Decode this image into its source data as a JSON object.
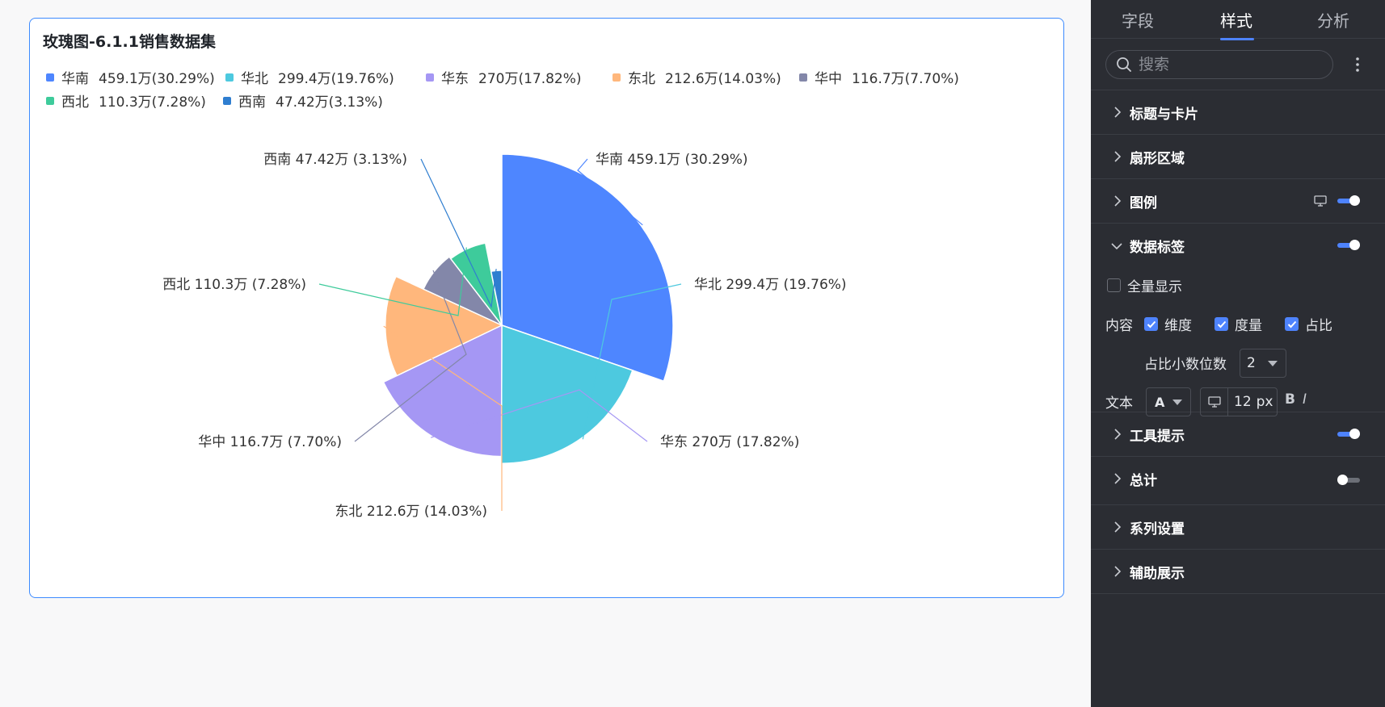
{
  "chart_title": "玫瑰图-6.1.1销售数据集",
  "colors": {
    "accent": "#4e83fd",
    "card_border": "#3d8bff",
    "panel_bg": "#2b2d33"
  },
  "legend": [
    {
      "name": "华南",
      "value": "459.1万(30.29%)",
      "color": "#4e86ff"
    },
    {
      "name": "华北",
      "value": "299.4万(19.76%)",
      "color": "#4dc9df"
    },
    {
      "name": "华东",
      "value": "270万(17.82%)",
      "color": "#a597f4"
    },
    {
      "name": "东北",
      "value": "212.6万(14.03%)",
      "color": "#ffb77c"
    },
    {
      "name": "华中",
      "value": "116.7万(7.70%)",
      "color": "#8387a9"
    },
    {
      "name": "西北",
      "value": "110.3万(7.28%)",
      "color": "#3ecb9b"
    },
    {
      "name": "西南",
      "value": "47.42万(3.13%)",
      "color": "#2f7ed0"
    }
  ],
  "chart_data": {
    "type": "pie",
    "variant": "rose",
    "title": "玫瑰图-6.1.1销售数据集",
    "categories": [
      "华南",
      "华北",
      "华东",
      "东北",
      "华中",
      "西北",
      "西南"
    ],
    "values": [
      459.1,
      299.4,
      270,
      212.6,
      116.7,
      110.3,
      47.42
    ],
    "unit": "万",
    "percentages": [
      30.29,
      19.76,
      17.82,
      14.03,
      7.7,
      7.28,
      3.13
    ],
    "colors": [
      "#4e86ff",
      "#4dc9df",
      "#a597f4",
      "#ffb77c",
      "#8387a9",
      "#3ecb9b",
      "#2f7ed0"
    ],
    "data_labels": [
      "华南 459.1万 (30.29%)",
      "华北 299.4万 (19.76%)",
      "华东 270万 (17.82%)",
      "东北 212.6万 (14.03%)",
      "华中 116.7万 (7.70%)",
      "西北 110.3万 (7.28%)",
      "西南 47.42万 (3.13%)"
    ],
    "legend_position": "top-left"
  },
  "panel": {
    "tabs": [
      "字段",
      "样式",
      "分析"
    ],
    "active_tab": "样式",
    "search_placeholder": "搜索",
    "sections": {
      "title_card": "标题与卡片",
      "sector": "扇形区域",
      "legend": "图例",
      "data_label": "数据标签",
      "tooltip": "工具提示",
      "total": "总计",
      "series": "系列设置",
      "aux": "辅助展示"
    },
    "toggles": {
      "legend": true,
      "data_label": true,
      "tooltip": true,
      "total": false
    },
    "data_label_options": {
      "show_all": "全量显示",
      "content_label": "内容",
      "dimension": "维度",
      "measure": "度量",
      "ratio": "占比",
      "decimal_label": "占比小数位数",
      "decimal_value": "2",
      "text_label": "文本",
      "font_color_letter": "A",
      "font_size_value": "12",
      "font_size_unit": "px",
      "bold_label": "B",
      "italic_label": "I"
    }
  }
}
